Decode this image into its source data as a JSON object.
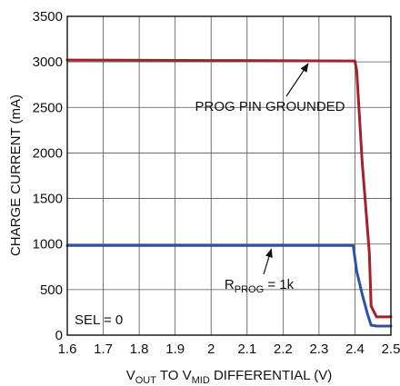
{
  "chart_data": {
    "type": "line",
    "xlabel": {
      "prefix": "V",
      "sub1": "OUT",
      "middle": " TO V",
      "sub2": "MID",
      "suffix": " DIFFERENTIAL (V)"
    },
    "ylabel": "CHARGE CURRENT (mA)",
    "xlim": [
      1.6,
      2.5
    ],
    "ylim": [
      0,
      3500
    ],
    "xticks": [
      1.6,
      1.7,
      1.8,
      1.9,
      2.0,
      2.1,
      2.2,
      2.3,
      2.4,
      2.5
    ],
    "xtick_labels": [
      "1.6",
      "1.7",
      "1.8",
      "1.9",
      "2",
      "2.1",
      "2.2",
      "2.3",
      "2.4",
      "2.5"
    ],
    "yticks": [
      0,
      500,
      1000,
      1500,
      2000,
      2500,
      3000,
      3500
    ],
    "ytick_labels": [
      "0",
      "500",
      "1000",
      "1500",
      "2000",
      "2500",
      "3000",
      "3500"
    ],
    "grid": true,
    "series": [
      {
        "color": "#a3202d",
        "x": [
          1.6,
          2.0,
          2.4,
          2.405,
          2.42,
          2.44,
          2.445,
          2.46,
          2.5
        ],
        "y": [
          3020,
          3015,
          3010,
          2900,
          1900,
          900,
          320,
          200,
          200
        ]
      },
      {
        "color": "#2a52a6",
        "x": [
          1.6,
          2.0,
          2.395,
          2.405,
          2.42,
          2.435,
          2.445,
          2.46,
          2.5
        ],
        "y": [
          985,
          985,
          985,
          700,
          450,
          230,
          110,
          100,
          100
        ]
      }
    ],
    "annotations": {
      "prog_grounded": {
        "text": "PROG PIN GROUNDED",
        "arrow_to": [
          2.27,
          3010
        ]
      },
      "rprog": {
        "prefix": "R",
        "sub": "PROG",
        "suffix": " = 1k",
        "arrow_to": [
          2.16,
          985
        ]
      },
      "sel": "SEL = 0"
    }
  }
}
